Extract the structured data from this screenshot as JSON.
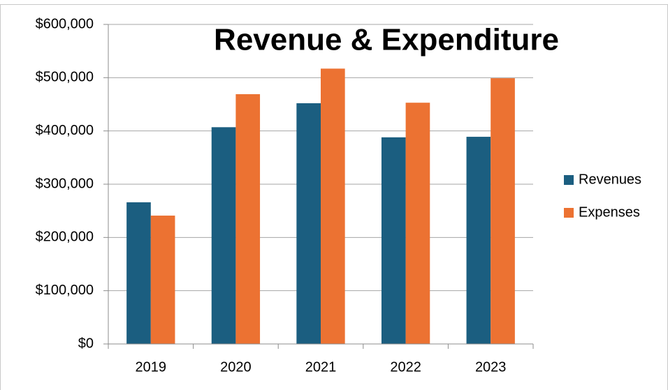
{
  "chart_data": {
    "type": "bar",
    "title": "Revenue & Expenditure",
    "categories": [
      "2019",
      "2020",
      "2021",
      "2022",
      "2023"
    ],
    "series": [
      {
        "name": "Revenues",
        "color": "#1b5e80",
        "values": [
          266000,
          407000,
          452000,
          388000,
          389000
        ]
      },
      {
        "name": "Expenses",
        "color": "#ec7232",
        "values": [
          241000,
          469000,
          517000,
          453000,
          499000
        ]
      }
    ],
    "ylim": [
      0,
      600000
    ],
    "yticks": [
      {
        "value": 0,
        "label": "$0"
      },
      {
        "value": 100000,
        "label": "$100,000"
      },
      {
        "value": 200000,
        "label": "$200,000"
      },
      {
        "value": 300000,
        "label": "$300,000"
      },
      {
        "value": 400000,
        "label": "$400,000"
      },
      {
        "value": 500000,
        "label": "$500,000"
      },
      {
        "value": 600000,
        "label": "$600,000"
      }
    ],
    "grid": true,
    "legend": "right"
  }
}
